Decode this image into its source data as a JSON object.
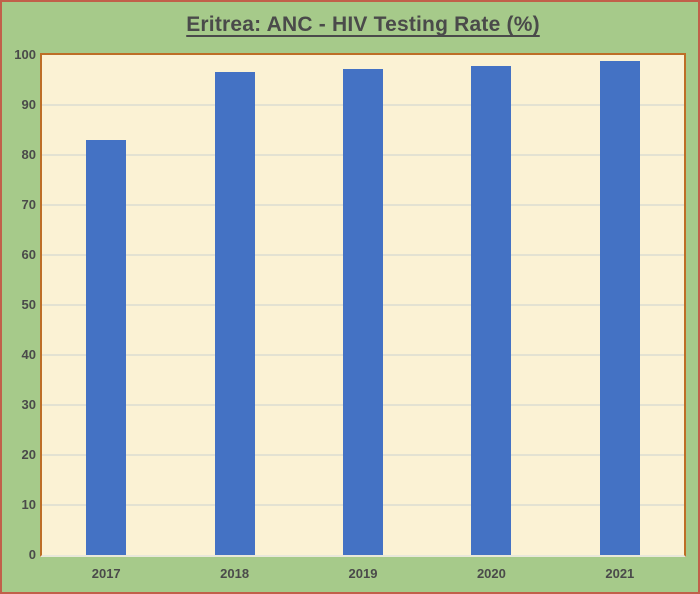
{
  "title": "Eritrea: ANC - HIV Testing Rate (%)",
  "chart_data": {
    "type": "bar",
    "title": "Eritrea: ANC - HIV Testing Rate (%)",
    "categories": [
      "2017",
      "2018",
      "2019",
      "2020",
      "2021"
    ],
    "values": [
      83,
      96.6,
      97.2,
      97.9,
      98.8
    ],
    "xlabel": "",
    "ylabel": "",
    "ylim": [
      0,
      100
    ],
    "yticks": [
      0,
      10,
      20,
      30,
      40,
      50,
      60,
      70,
      80,
      90,
      100
    ],
    "grid": true,
    "legend": false,
    "colors": {
      "bar": "#4472C4",
      "plot_background": "#FBF2D4",
      "page_background": "#A6CA8A",
      "plot_border": "#BD6E27",
      "page_border": "#C1604A",
      "gridline": "#E3E2D2",
      "text": "#4A4A4A"
    }
  }
}
